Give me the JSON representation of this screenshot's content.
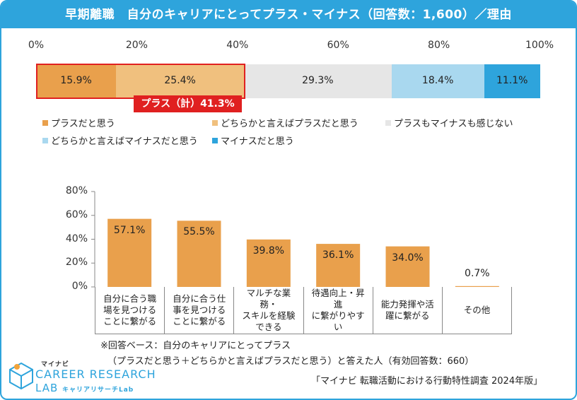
{
  "title": "早期離職　自分のキャリアにとってプラス・マイナス（回答数：1,600）／理由",
  "chart_data": [
    {
      "type": "stacked-bar",
      "orientation": "horizontal",
      "xlim": [
        0,
        100
      ],
      "ticks": [
        "0%",
        "20%",
        "40%",
        "60%",
        "80%",
        "100%"
      ],
      "tick_values": [
        0,
        20,
        40,
        60,
        80,
        100
      ],
      "segments": [
        {
          "name": "プラスだと思う",
          "value": 15.9,
          "label": "15.9%",
          "color": "#e9a04c"
        },
        {
          "name": "どちらかと言えばプラスだと思う",
          "value": 25.4,
          "label": "25.4%",
          "color": "#f0c07e"
        },
        {
          "name": "プラスもマイナスも感じない",
          "value": 29.3,
          "label": "29.3%",
          "color": "#e6e6e6"
        },
        {
          "name": "どちらかと言えばマイナスだと思う",
          "value": 18.4,
          "label": "18.4%",
          "color": "#a9d8ef"
        },
        {
          "name": "マイナスだと思う",
          "value": 11.1,
          "label": "11.1%",
          "color": "#2ea4dc"
        }
      ],
      "annotation": "プラス（計）41.3%",
      "highlight_color": "#e02020"
    },
    {
      "type": "bar",
      "ylim": [
        0,
        80
      ],
      "yticks": [
        "80%",
        "60%",
        "40%",
        "20%",
        "0%"
      ],
      "ytick_values": [
        80,
        60,
        40,
        20,
        0
      ],
      "categories": [
        "自分に合う職\n場を見つける\nことに繋がる",
        "自分に合う仕\n事を見つける\nことに繋がる",
        "マルチな業務・\nスキルを経験\nできる",
        "待遇向上・昇進\nに繋がりやす\nい",
        "能力発揮や活\n躍に繋がる",
        "その他"
      ],
      "values": [
        57.1,
        55.5,
        39.8,
        36.1,
        34.0,
        0.7
      ],
      "labels": [
        "57.1%",
        "55.5%",
        "39.8%",
        "36.1%",
        "34.0%",
        "0.7%"
      ],
      "color": "#e9a04c"
    }
  ],
  "notes": {
    "line1": "※回答ベース：自分のキャリアにとってプラス",
    "line2": "（プラスだと思う＋どちらかと言えばプラスだと思う）と答えた人（有効回答数：660）"
  },
  "source": "「マイナビ 転職活動における行動特性調査 2024年版」",
  "logo": {
    "top": "マイナビ",
    "main": "CAREER RESEARCH",
    "lab": "LAB",
    "sub": "キャリアリサーチLab",
    "color": "#2ea4dc"
  }
}
